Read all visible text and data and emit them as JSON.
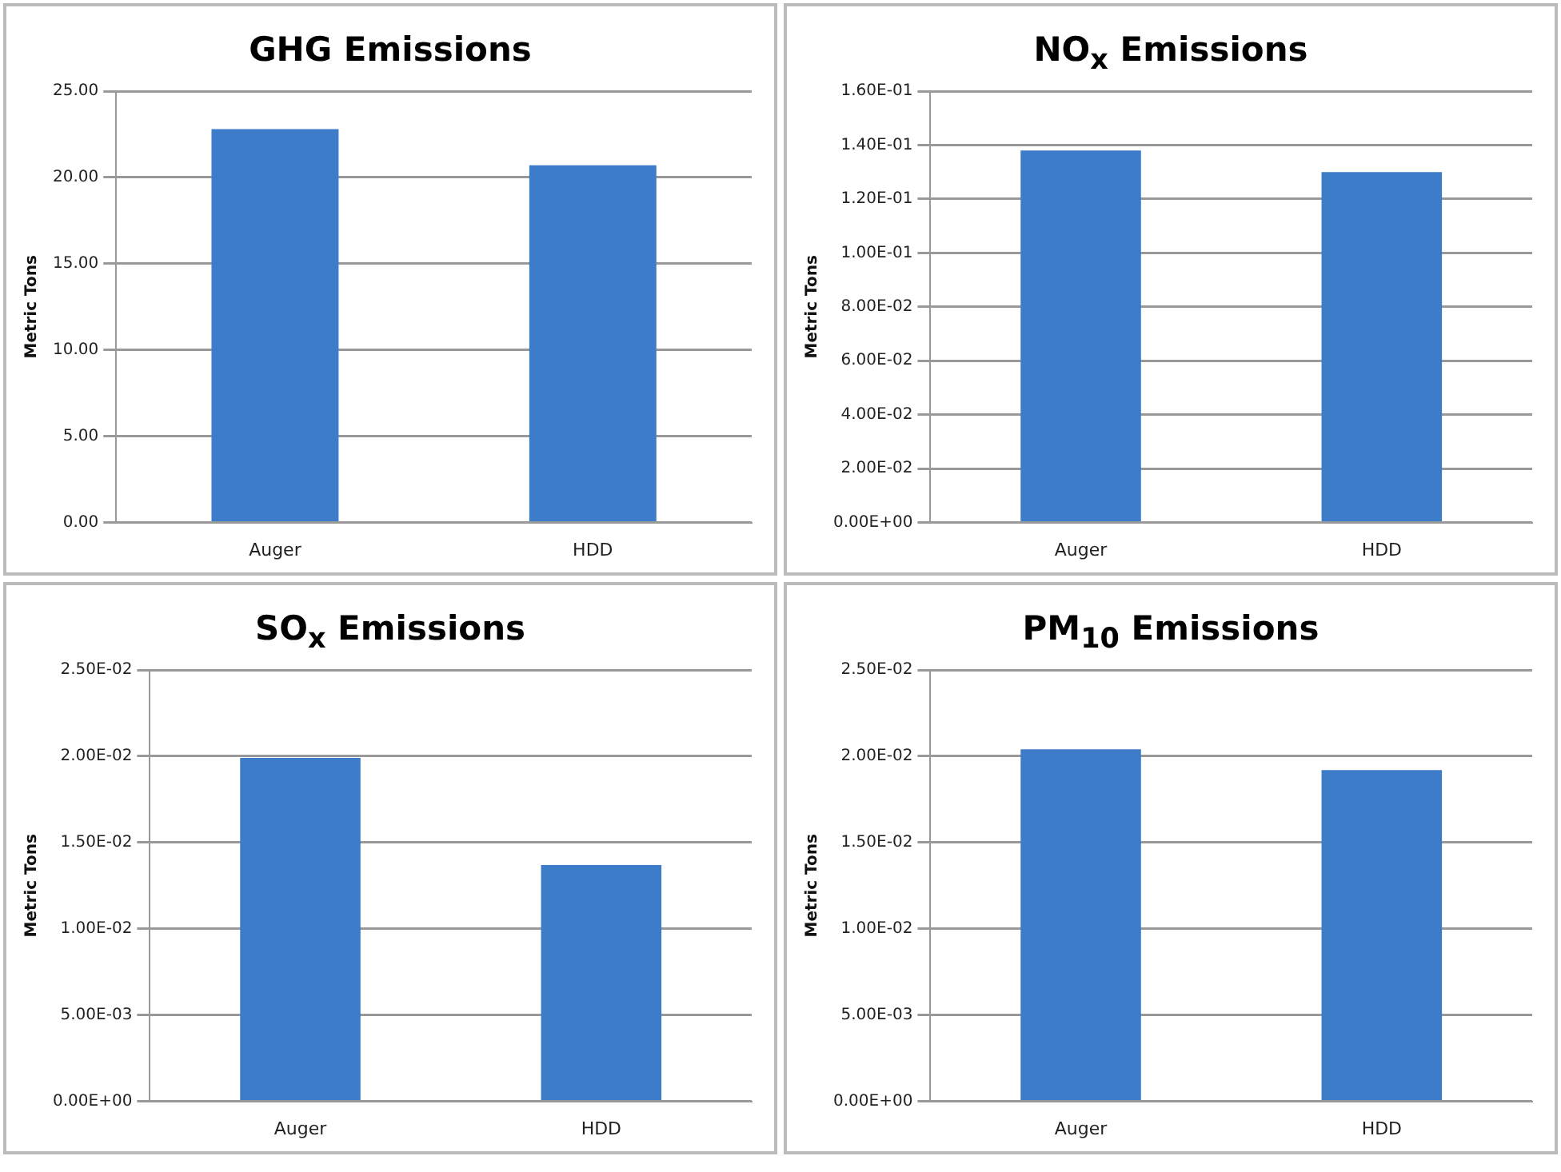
{
  "chart_data": [
    {
      "type": "bar",
      "title": "GHG Emissions",
      "ylabel": "Metric Tons",
      "categories": [
        "Auger",
        "HDD"
      ],
      "values": [
        22.8,
        20.7
      ],
      "color": "#3d7cc9",
      "ylim": [
        0,
        25
      ],
      "yticks": [
        {
          "value": 0,
          "label": "0.00"
        },
        {
          "value": 5,
          "label": "5.00"
        },
        {
          "value": 10,
          "label": "10.00"
        },
        {
          "value": 15,
          "label": "15.00"
        },
        {
          "value": 20,
          "label": "20.00"
        },
        {
          "value": 25,
          "label": "25.00"
        }
      ],
      "grid": "y"
    },
    {
      "type": "bar",
      "title": "NO$_{x}$ Emissions",
      "ylabel": "Metric Tons",
      "categories": [
        "Auger",
        "HDD"
      ],
      "values": [
        0.138,
        0.13
      ],
      "color": "#3d7cc9",
      "ylim": [
        0,
        0.16
      ],
      "yticks": [
        {
          "value": 0,
          "label": "0.00E+00"
        },
        {
          "value": 0.02,
          "label": "2.00E-02"
        },
        {
          "value": 0.04,
          "label": "4.00E-02"
        },
        {
          "value": 0.06,
          "label": "6.00E-02"
        },
        {
          "value": 0.08,
          "label": "8.00E-02"
        },
        {
          "value": 0.1,
          "label": "1.00E-01"
        },
        {
          "value": 0.12,
          "label": "1.20E-01"
        },
        {
          "value": 0.14,
          "label": "1.40E-01"
        },
        {
          "value": 0.16,
          "label": "1.60E-01"
        }
      ],
      "grid": "y"
    },
    {
      "type": "bar",
      "title": "SO$_{x}$ Emissions",
      "ylabel": "Metric Tons",
      "categories": [
        "Auger",
        "HDD"
      ],
      "values": [
        0.0199,
        0.0137
      ],
      "color": "#3d7cc9",
      "ylim": [
        0,
        0.025
      ],
      "yticks": [
        {
          "value": 0,
          "label": "0.00E+00"
        },
        {
          "value": 0.005,
          "label": "5.00E-03"
        },
        {
          "value": 0.01,
          "label": "1.00E-02"
        },
        {
          "value": 0.015,
          "label": "1.50E-02"
        },
        {
          "value": 0.02,
          "label": "2.00E-02"
        },
        {
          "value": 0.025,
          "label": "2.50E-02"
        }
      ],
      "grid": "y"
    },
    {
      "type": "bar",
      "title": "PM$_{10}$ Emissions",
      "ylabel": "Metric Tons",
      "categories": [
        "Auger",
        "HDD"
      ],
      "values": [
        0.0204,
        0.0192
      ],
      "color": "#3d7cc9",
      "ylim": [
        0,
        0.025
      ],
      "yticks": [
        {
          "value": 0,
          "label": "0.00E+00"
        },
        {
          "value": 0.005,
          "label": "5.00E-03"
        },
        {
          "value": 0.01,
          "label": "1.00E-02"
        },
        {
          "value": 0.015,
          "label": "1.50E-02"
        },
        {
          "value": 0.02,
          "label": "2.00E-02"
        },
        {
          "value": 0.025,
          "label": "2.50E-02"
        }
      ],
      "grid": "y"
    }
  ]
}
